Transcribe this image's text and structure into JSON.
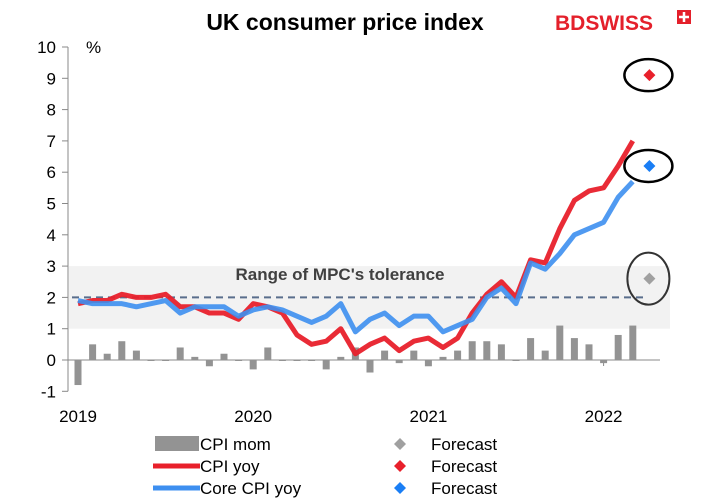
{
  "logo": {
    "text": "BDSWISS",
    "color": "#e4202b"
  },
  "chart_data": {
    "type": "line",
    "title": "UK consumer price index",
    "ylabel": "%",
    "ylim": [
      -1,
      10
    ],
    "yticks": [
      -1,
      0,
      1,
      2,
      3,
      4,
      5,
      6,
      7,
      8,
      9,
      10
    ],
    "xticks": [
      "2019",
      "2020",
      "2021",
      "2022"
    ],
    "x_start": "2019-01",
    "x_end": "2022-03",
    "grid": false,
    "band": {
      "label": "Range of MPC's tolerance",
      "from": 1,
      "to": 3,
      "color": "#f2f2f2"
    },
    "target_line": {
      "value": 2,
      "color": "#5a6e8c",
      "style": "dashed"
    },
    "series": [
      {
        "name": "CPI mom",
        "type": "bar",
        "color": "#939393",
        "values": [
          -0.8,
          0.5,
          0.2,
          0.6,
          0.3,
          0.0,
          0.0,
          0.4,
          0.1,
          -0.2,
          0.2,
          0.0,
          -0.3,
          0.4,
          0.0,
          0.0,
          0.0,
          -0.3,
          0.1,
          0.4,
          -0.4,
          0.3,
          -0.1,
          0.3,
          -0.2,
          0.1,
          0.3,
          0.6,
          0.6,
          0.5,
          0.0,
          0.7,
          0.3,
          1.1,
          0.7,
          0.5,
          -0.1,
          0.8,
          1.1
        ]
      },
      {
        "name": "CPI yoy",
        "type": "line",
        "color": "#e8202b",
        "values": [
          1.8,
          1.9,
          1.9,
          2.1,
          2.0,
          2.0,
          2.1,
          1.7,
          1.7,
          1.5,
          1.5,
          1.3,
          1.8,
          1.7,
          1.5,
          0.8,
          0.5,
          0.6,
          1.0,
          0.2,
          0.5,
          0.7,
          0.3,
          0.6,
          0.7,
          0.4,
          0.7,
          1.5,
          2.1,
          2.5,
          2.0,
          3.2,
          3.1,
          4.2,
          5.1,
          5.4,
          5.5,
          6.2,
          7.0
        ]
      },
      {
        "name": "Core CPI yoy",
        "type": "line",
        "color": "#3d8ff0",
        "values": [
          1.9,
          1.8,
          1.8,
          1.8,
          1.7,
          1.8,
          1.9,
          1.5,
          1.7,
          1.7,
          1.7,
          1.4,
          1.6,
          1.7,
          1.6,
          1.4,
          1.2,
          1.4,
          1.8,
          0.9,
          1.3,
          1.5,
          1.1,
          1.4,
          1.4,
          0.9,
          1.1,
          1.3,
          2.0,
          2.3,
          1.8,
          3.1,
          2.9,
          3.4,
          4.0,
          4.2,
          4.4,
          5.2,
          5.7
        ]
      }
    ],
    "forecasts": [
      {
        "name": "Forecast",
        "of": "CPI mom",
        "date": "2022-04",
        "value": 2.6,
        "color": "#a0a0a0"
      },
      {
        "name": "Forecast",
        "of": "CPI yoy",
        "date": "2022-04",
        "value": 9.1,
        "color": "#e8202b"
      },
      {
        "name": "Forecast",
        "of": "Core CPI yoy",
        "date": "2022-04",
        "value": 6.2,
        "color": "#1a7ef5"
      }
    ],
    "legend_position": "bottom"
  }
}
